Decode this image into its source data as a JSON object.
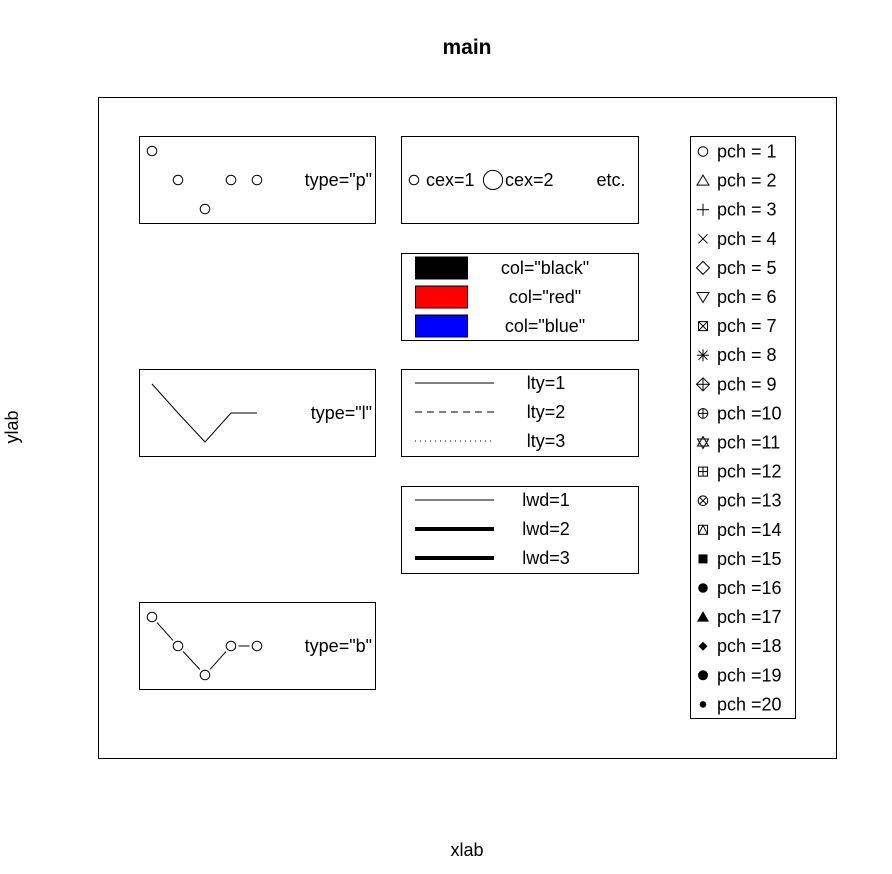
{
  "chart_data": {
    "type": "legend_demo",
    "title": "main",
    "xlabel": "xlab",
    "ylabel": "ylab",
    "type_panels": [
      {
        "label": "type=\"p\"",
        "type": "p",
        "y": [
          1,
          0,
          -1,
          0,
          0
        ]
      },
      {
        "label": "type=\"l\"",
        "type": "l",
        "y": [
          1,
          0,
          -1,
          0,
          0
        ]
      },
      {
        "label": "type=\"b\"",
        "type": "b",
        "y": [
          1,
          0,
          -1,
          0,
          0
        ]
      }
    ],
    "cex_panel": {
      "labels": [
        "cex=1",
        "cex=2",
        "etc."
      ],
      "cex": [
        1,
        2
      ]
    },
    "col_panel": [
      {
        "label": "col=\"black\"",
        "color": "#000000"
      },
      {
        "label": "col=\"red\"",
        "color": "#ff0000"
      },
      {
        "label": "col=\"blue\"",
        "color": "#0000ff"
      }
    ],
    "lty_panel": [
      {
        "label": "lty=1",
        "lty": 1
      },
      {
        "label": "lty=2",
        "lty": 2
      },
      {
        "label": "lty=3",
        "lty": 3
      }
    ],
    "lwd_panel": [
      {
        "label": "lwd=1",
        "lwd": 1
      },
      {
        "label": "lwd=2",
        "lwd": 2
      },
      {
        "label": "lwd=3",
        "lwd": 3
      }
    ],
    "pch_panel": [
      {
        "pch": 1,
        "label": "pch = 1"
      },
      {
        "pch": 2,
        "label": "pch = 2"
      },
      {
        "pch": 3,
        "label": "pch = 3"
      },
      {
        "pch": 4,
        "label": "pch = 4"
      },
      {
        "pch": 5,
        "label": "pch = 5"
      },
      {
        "pch": 6,
        "label": "pch = 6"
      },
      {
        "pch": 7,
        "label": "pch = 7"
      },
      {
        "pch": 8,
        "label": "pch = 8"
      },
      {
        "pch": 9,
        "label": "pch = 9"
      },
      {
        "pch": 10,
        "label": "pch =10"
      },
      {
        "pch": 11,
        "label": "pch =11"
      },
      {
        "pch": 12,
        "label": "pch =12"
      },
      {
        "pch": 13,
        "label": "pch =13"
      },
      {
        "pch": 14,
        "label": "pch =14"
      },
      {
        "pch": 15,
        "label": "pch =15"
      },
      {
        "pch": 16,
        "label": "pch =16"
      },
      {
        "pch": 17,
        "label": "pch =17"
      },
      {
        "pch": 18,
        "label": "pch =18"
      },
      {
        "pch": 19,
        "label": "pch =19"
      },
      {
        "pch": 20,
        "label": "pch =20"
      }
    ]
  }
}
